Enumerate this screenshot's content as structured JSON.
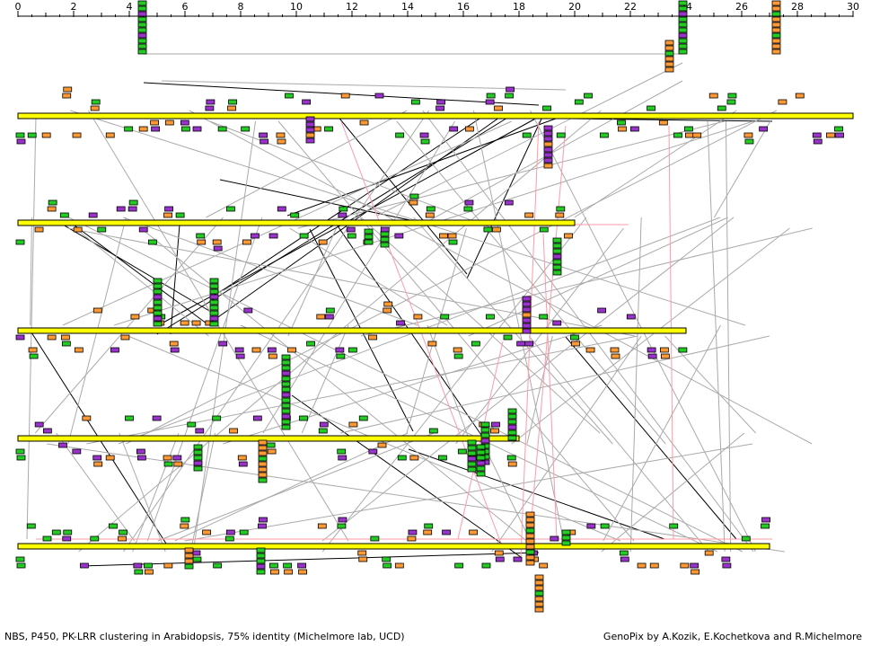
{
  "axis": {
    "min": 0,
    "max": 30,
    "major_step": 2,
    "tick_labels": [
      "0",
      "2",
      "4",
      "6",
      "8",
      "10",
      "12",
      "14",
      "16",
      "18",
      "20",
      "22",
      "24",
      "26",
      "28",
      "30"
    ]
  },
  "colors": {
    "chromosome_fill": "#ffff00",
    "chromosome_border": "#000000",
    "nbs": "#22cc22",
    "p450": "#9933cc",
    "pk_lrr": "#ff9933",
    "link_dark": "#000000",
    "link_gray": "#aaaaaa",
    "link_pink": "#ff99aa"
  },
  "chromosomes": [
    {
      "id": "chr1",
      "length": 30.0
    },
    {
      "id": "chr2",
      "length": 20.0
    },
    {
      "id": "chr3",
      "length": 24.0
    },
    {
      "id": "chr4",
      "length": 18.0
    },
    {
      "id": "chr5",
      "length": 27.0
    }
  ],
  "captions": {
    "left": "NBS, P450, PK-LRR clustering in Arabidopsis, 75% identity  (Michelmore lab, UCD)",
    "right": "GenoPix by A.Kozik, E.Kochetkova and R.Michelmore"
  }
}
